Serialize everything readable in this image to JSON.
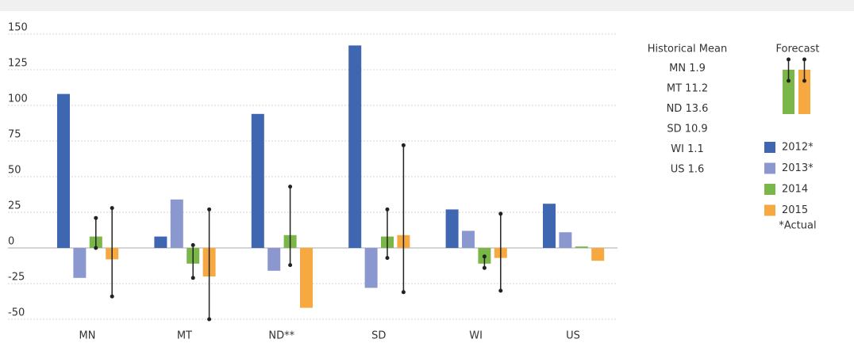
{
  "chart_data": {
    "type": "bar",
    "categories": [
      "MN",
      "MT",
      "ND**",
      "SD",
      "WI",
      "US"
    ],
    "series": [
      {
        "name": "2012*",
        "color": "#3f66b0",
        "values": [
          108,
          8,
          94,
          142,
          27,
          31
        ]
      },
      {
        "name": "2013*",
        "color": "#8b98cf",
        "values": [
          -21,
          34,
          -16,
          -28,
          12,
          11
        ]
      },
      {
        "name": "2014",
        "color": "#7ab648",
        "values": [
          8,
          -11,
          9,
          8,
          -11,
          1
        ],
        "error_low": [
          0,
          -21,
          -12,
          -7,
          -14,
          null
        ],
        "error_high": [
          21,
          2,
          43,
          27,
          -6,
          null
        ]
      },
      {
        "name": "2015",
        "color": "#f6a941",
        "values": [
          -8,
          -20,
          -42,
          9,
          -7,
          -9
        ],
        "error_low": [
          -34,
          -50,
          null,
          -31,
          -30,
          null
        ],
        "error_high": [
          28,
          27,
          null,
          72,
          24,
          null
        ]
      }
    ],
    "ylim": [
      -50,
      150
    ],
    "yticks": [
      -50,
      -25,
      0,
      25,
      50,
      75,
      100,
      125,
      150
    ],
    "grid": true,
    "historical_mean": {
      "title": "Historical Mean",
      "items": [
        {
          "label": "MN",
          "value": 1.9
        },
        {
          "label": "MT",
          "value": 11.2
        },
        {
          "label": "ND",
          "value": 13.6
        },
        {
          "label": "SD",
          "value": 10.9
        },
        {
          "label": "WI",
          "value": 1.1
        },
        {
          "label": "US",
          "value": 1.6
        }
      ]
    },
    "forecast_label": "Forecast",
    "legend_note": "*Actual"
  }
}
